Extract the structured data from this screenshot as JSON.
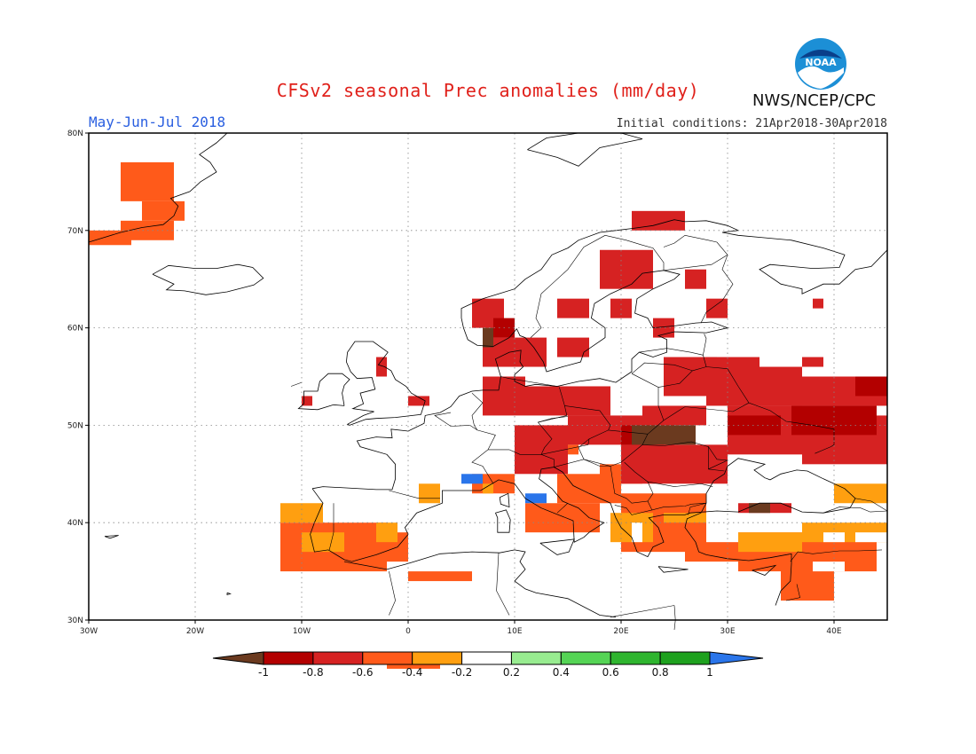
{
  "title": "CFSv2 seasonal Prec anomalies (mm/day)",
  "period": "May-Jun-Jul 2018",
  "initial_conditions": "Initial conditions: 21Apr2018-30Apr2018",
  "agency": "NWS/NCEP/CPC",
  "logo_text": "NOAA",
  "map": {
    "lon_range": [
      -30,
      45
    ],
    "lat_range": [
      30,
      80
    ],
    "lon_ticks": [
      {
        "v": -30,
        "label": "30W"
      },
      {
        "v": -20,
        "label": "20W"
      },
      {
        "v": -10,
        "label": "10W"
      },
      {
        "v": 0,
        "label": "0"
      },
      {
        "v": 10,
        "label": "10E"
      },
      {
        "v": 20,
        "label": "20E"
      },
      {
        "v": 30,
        "label": "30E"
      },
      {
        "v": 40,
        "label": "40E"
      }
    ],
    "lat_ticks": [
      {
        "v": 30,
        "label": "30N"
      },
      {
        "v": 40,
        "label": "40N"
      },
      {
        "v": 50,
        "label": "50N"
      },
      {
        "v": 60,
        "label": "60N"
      },
      {
        "v": 70,
        "label": "70N"
      },
      {
        "v": 80,
        "label": "80N"
      }
    ],
    "grid_style": "dotted"
  },
  "colorbar": {
    "labels": [
      "-1",
      "-0.8",
      "-0.6",
      "-0.4",
      "-0.2",
      "0.2",
      "0.4",
      "0.6",
      "0.8",
      "1"
    ],
    "colors": [
      "#6b3a1f",
      "#b30000",
      "#d62222",
      "#ff5a1a",
      "#ff9f10",
      "#ffffff",
      "#98ec90",
      "#55d455",
      "#2fb52f",
      "#1ea11e",
      "#2a75ea"
    ]
  },
  "anomaly_regions": [
    {
      "cls": 3,
      "rects": [
        [
          -27,
          73,
          -22,
          77
        ],
        [
          -27,
          69,
          -22,
          71
        ],
        [
          -30,
          68.5,
          -26,
          70
        ],
        [
          -25,
          71,
          -21,
          73
        ]
      ]
    },
    {
      "cls": 3,
      "rects": [
        [
          -2,
          26,
          3,
          25
        ],
        [
          -12,
          35,
          -2,
          40
        ],
        [
          -4,
          36,
          0,
          39
        ],
        [
          0,
          34,
          6,
          35
        ],
        [
          6,
          43,
          10,
          45
        ],
        [
          11,
          39,
          18,
          42
        ],
        [
          14,
          42,
          20,
          45
        ],
        [
          20,
          37,
          28,
          43
        ],
        [
          26,
          36,
          33,
          38
        ],
        [
          31,
          35,
          44,
          39
        ],
        [
          35,
          32,
          40,
          37
        ],
        [
          12,
          48,
          16,
          47
        ],
        [
          18,
          44,
          22,
          46
        ]
      ]
    },
    {
      "cls": 4,
      "rects": [
        [
          -12,
          40,
          -8,
          42
        ],
        [
          -10,
          37,
          -6,
          39
        ],
        [
          -3,
          38,
          -1,
          40
        ],
        [
          1,
          42,
          3,
          44
        ],
        [
          7,
          43,
          8,
          44
        ],
        [
          19,
          38,
          23,
          41
        ],
        [
          24,
          40,
          28,
          41
        ],
        [
          31,
          37,
          37,
          39
        ],
        [
          37,
          38,
          45,
          40
        ],
        [
          40,
          42,
          45,
          44
        ]
      ]
    },
    {
      "cls": 5,
      "rects": [
        [
          21,
          38,
          22,
          40
        ],
        [
          39,
          38,
          41,
          39
        ],
        [
          38,
          35,
          41,
          36
        ],
        [
          42,
          38,
          45,
          39
        ]
      ]
    },
    {
      "cls": 2,
      "rects": [
        [
          6,
          60,
          9,
          63
        ],
        [
          7,
          56,
          13,
          59
        ],
        [
          14,
          57,
          17,
          59
        ],
        [
          14,
          61,
          17,
          63
        ],
        [
          18,
          64,
          23,
          68
        ],
        [
          19,
          61,
          21,
          63
        ],
        [
          26,
          64,
          28,
          66
        ],
        [
          28,
          52,
          33,
          57
        ],
        [
          33,
          52,
          37,
          56
        ],
        [
          37,
          52,
          45,
          55
        ],
        [
          37,
          46,
          45,
          51
        ],
        [
          30,
          47,
          37,
          52
        ],
        [
          22,
          50,
          28,
          52
        ],
        [
          15,
          48,
          25,
          51
        ],
        [
          10,
          45,
          15,
          50
        ],
        [
          20,
          44,
          30,
          48
        ],
        [
          11,
          51,
          19,
          54
        ],
        [
          7,
          51,
          11,
          55
        ],
        [
          0,
          52,
          2,
          53
        ],
        [
          -10,
          52,
          -9,
          53
        ],
        [
          -3,
          55,
          -2,
          57
        ],
        [
          31,
          41,
          36,
          42
        ],
        [
          38,
          62,
          39,
          63
        ],
        [
          37,
          56,
          39,
          57
        ],
        [
          21,
          70,
          26,
          72
        ],
        [
          24,
          53,
          29,
          57
        ],
        [
          23,
          59,
          25,
          61
        ],
        [
          28,
          61,
          30,
          63
        ]
      ]
    },
    {
      "cls": 1,
      "rects": [
        [
          8,
          59,
          10,
          61
        ],
        [
          20,
          48,
          24,
          50
        ],
        [
          30,
          49,
          35,
          51
        ],
        [
          36,
          49,
          44,
          52
        ],
        [
          42,
          53,
          45,
          55
        ]
      ]
    },
    {
      "cls": 0,
      "rects": [
        [
          7,
          58,
          8,
          60
        ],
        [
          21,
          48,
          27,
          50
        ],
        [
          32,
          41,
          34,
          42
        ]
      ]
    },
    {
      "cls": 10,
      "rects": [
        [
          5,
          44,
          7,
          45
        ],
        [
          11,
          42,
          13,
          43
        ]
      ]
    }
  ],
  "land_masks": [
    {
      "name": "iceland",
      "rects": [
        [
          -23,
          63.5,
          -14,
          66.5
        ]
      ]
    },
    {
      "name": "scandinavia",
      "rects": [
        [
          5,
          58,
          31,
          71
        ]
      ]
    },
    {
      "name": "iberia",
      "rects": [
        [
          -9,
          36,
          3,
          43.5
        ]
      ]
    }
  ]
}
